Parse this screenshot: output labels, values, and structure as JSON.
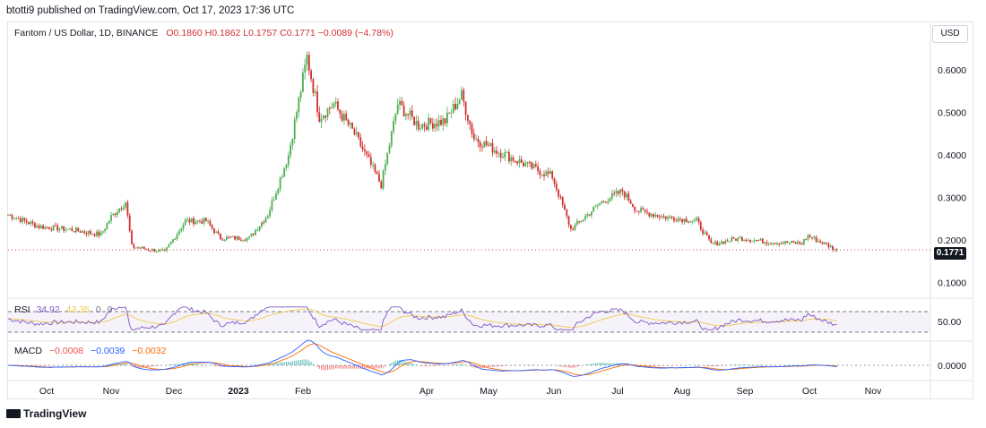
{
  "header": {
    "published": "btotti9 published on TradingView.com, Oct 17, 2023 17:36 UTC"
  },
  "legend": {
    "symbol": "Fantom / US Dollar, 1D, BINANCE",
    "open": "O0.1860",
    "high": "H0.1862",
    "low": "L0.1757",
    "close": "C0.1771",
    "change": "−0.0089 (−4.78%)"
  },
  "currency_button": "USD",
  "last_price": "0.1771",
  "rsi": {
    "label": "RSI",
    "value": "34.92",
    "ma": "43.35",
    "extra1": "0",
    "extra2": "0"
  },
  "macd": {
    "label": "MACD",
    "v1": "−0.0008",
    "v2": "−0.0039",
    "v3": "−0.0032"
  },
  "footer": {
    "brand": "TradingView"
  },
  "colors": {
    "up": "#26a69a",
    "down": "#ef5350",
    "candle_up": "#4caf50",
    "candle_down": "#d32f2f",
    "rsi": "#7e57c2",
    "rsi_ma": "#f2c94c",
    "macd": "#2962ff",
    "signal": "#ff6d00"
  },
  "chart_data": {
    "type": "candlestick",
    "title": "Fantom / US Dollar, 1D, BINANCE",
    "ylim": [
      0.07,
      0.68
    ],
    "y_ticks": [
      "0.6000",
      "0.5000",
      "0.4000",
      "0.3000",
      "0.2000",
      "0.1000"
    ],
    "x_ticks": [
      "Oct",
      "Nov",
      "Dec",
      "2023",
      "Feb",
      "Apr",
      "May",
      "Jun",
      "Jul",
      "Aug",
      "Sep",
      "Oct",
      "Nov"
    ],
    "date_range": [
      "2022-09-10",
      "2023-10-17"
    ],
    "close_path": [
      [
        "2022-09-10",
        0.26
      ],
      [
        "2022-09-25",
        0.232
      ],
      [
        "2022-10-10",
        0.225
      ],
      [
        "2022-10-25",
        0.213
      ],
      [
        "2022-10-30",
        0.255
      ],
      [
        "2022-11-06",
        0.29
      ],
      [
        "2022-11-09",
        0.185
      ],
      [
        "2022-11-25",
        0.172
      ],
      [
        "2022-12-05",
        0.245
      ],
      [
        "2022-12-15",
        0.245
      ],
      [
        "2022-12-22",
        0.205
      ],
      [
        "2023-01-05",
        0.205
      ],
      [
        "2023-01-14",
        0.26
      ],
      [
        "2023-01-24",
        0.4
      ],
      [
        "2023-02-02",
        0.63
      ],
      [
        "2023-02-08",
        0.49
      ],
      [
        "2023-02-15",
        0.52
      ],
      [
        "2023-02-25",
        0.45
      ],
      [
        "2023-03-10",
        0.33
      ],
      [
        "2023-03-18",
        0.52
      ],
      [
        "2023-03-28",
        0.47
      ],
      [
        "2023-04-10",
        0.48
      ],
      [
        "2023-04-18",
        0.54
      ],
      [
        "2023-04-24",
        0.44
      ],
      [
        "2023-05-05",
        0.41
      ],
      [
        "2023-05-20",
        0.375
      ],
      [
        "2023-06-01",
        0.35
      ],
      [
        "2023-06-10",
        0.225
      ],
      [
        "2023-06-25",
        0.29
      ],
      [
        "2023-07-05",
        0.315
      ],
      [
        "2023-07-12",
        0.27
      ],
      [
        "2023-07-25",
        0.255
      ],
      [
        "2023-08-10",
        0.245
      ],
      [
        "2023-08-17",
        0.19
      ],
      [
        "2023-08-31",
        0.205
      ],
      [
        "2023-09-15",
        0.195
      ],
      [
        "2023-09-30",
        0.193
      ],
      [
        "2023-10-03",
        0.21
      ],
      [
        "2023-10-17",
        0.1771
      ]
    ],
    "rsi_scale": {
      "ticks": [
        "50.00"
      ],
      "bands": [
        70,
        30
      ]
    },
    "macd_scale": {
      "ticks": [
        "0.0000"
      ]
    }
  }
}
